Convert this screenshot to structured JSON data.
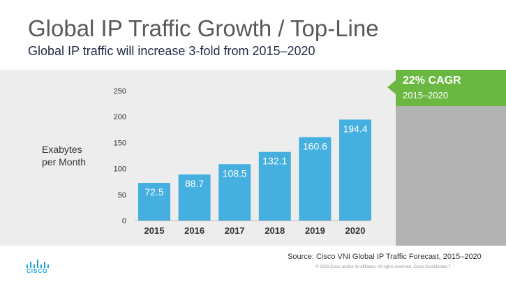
{
  "slide": {
    "title": "Global IP Traffic Growth / Top-Line",
    "subtitle": "Global IP traffic will increase 3-fold from 2015–2020",
    "ylabel_line1": "Exabytes",
    "ylabel_line2": "per Month",
    "cagr_title": "22% CAGR",
    "cagr_period": "2015–2020",
    "source": "Source: Cisco VNI Global IP Traffic Forecast, 2015–2020",
    "footer": "© 2016  Cisco and/or its affiliates. All rights reserved.   Cisco Confidential      7",
    "logo_text": "CISCO"
  },
  "colors": {
    "bar": "#45b0e0",
    "accent_green": "#6ab842",
    "panel_gray": "#b3b3b3",
    "band_gray": "#ededed"
  },
  "chart_data": {
    "type": "bar",
    "categories": [
      "2015",
      "2016",
      "2017",
      "2018",
      "2019",
      "2020"
    ],
    "values": [
      72.5,
      88.7,
      108.5,
      132.1,
      160.6,
      194.4
    ],
    "value_labels": [
      "72.5",
      "88.7",
      "108.5",
      "132.1",
      "160.6",
      "194.4"
    ],
    "yticks": [
      0,
      50,
      100,
      150,
      200,
      250
    ],
    "ylim": [
      0,
      250
    ],
    "title": "",
    "xlabel": "",
    "ylabel": "Exabytes per Month",
    "grid": false
  }
}
